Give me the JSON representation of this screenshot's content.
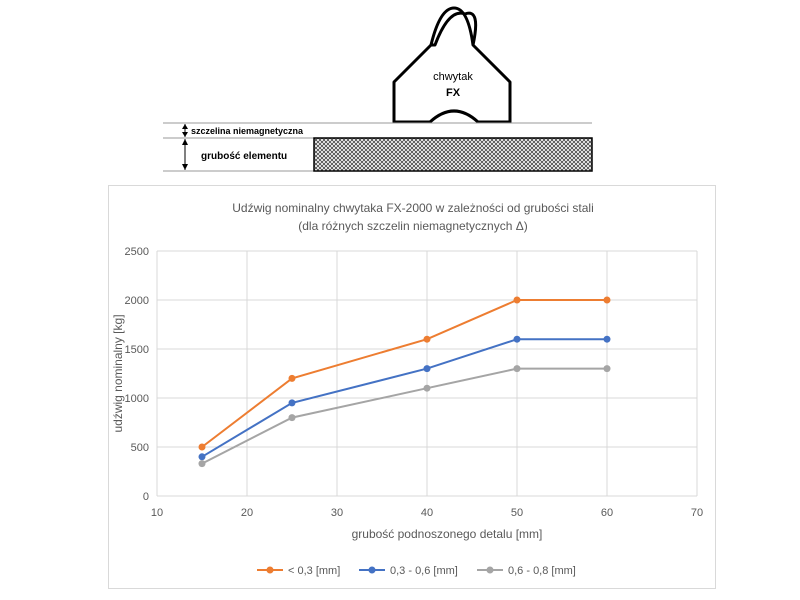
{
  "diagram": {
    "grip_label_line1": "chwytak",
    "grip_label_line2": "FX",
    "gap_label": "szczelina niemagnetyczna",
    "thickness_label": "grubość elementu"
  },
  "chart_data": {
    "type": "line",
    "title": "Udźwig nominalny chwytaka FX-2000 w zależności od grubości stali",
    "subtitle": "(dla różnych szczelin niemagnetycznych Δ)",
    "xlabel": "grubość podnoszonego detalu [mm]",
    "ylabel": "udźwig nominalny [kg]",
    "xlim": [
      10,
      70
    ],
    "ylim": [
      0,
      2500
    ],
    "xticks": [
      10,
      20,
      30,
      40,
      50,
      60,
      70
    ],
    "yticks": [
      0,
      500,
      1000,
      1500,
      2000,
      2500
    ],
    "grid": true,
    "legend_position": "bottom",
    "x": [
      15,
      25,
      40,
      50,
      60
    ],
    "series": [
      {
        "name": "< 0,3 [mm]",
        "color": "#ed7d31",
        "values": [
          500,
          1200,
          1600,
          2000,
          2000
        ]
      },
      {
        "name": "0,3 - 0,6 [mm]",
        "color": "#4472c4",
        "values": [
          400,
          950,
          1300,
          1600,
          1600
        ]
      },
      {
        "name": "0,6 - 0,8 [mm]",
        "color": "#a5a5a5",
        "values": [
          330,
          800,
          1100,
          1300,
          1300
        ]
      }
    ]
  }
}
